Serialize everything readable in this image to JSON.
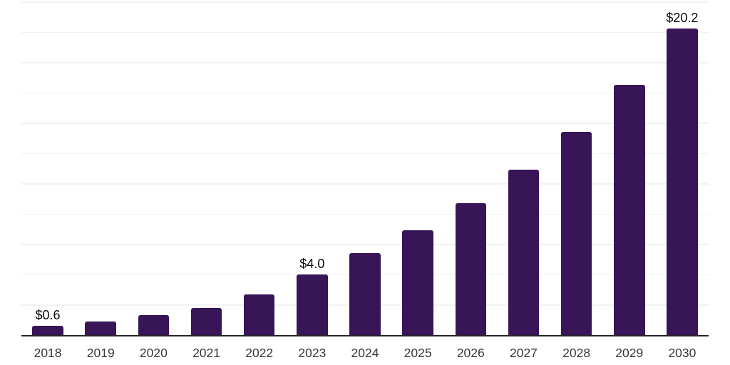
{
  "chart_data": {
    "type": "bar",
    "title": "",
    "xlabel": "",
    "ylabel": "",
    "categories": [
      "2018",
      "2019",
      "2020",
      "2021",
      "2022",
      "2023",
      "2024",
      "2025",
      "2026",
      "2027",
      "2028",
      "2029",
      "2030"
    ],
    "values": [
      0.6,
      0.9,
      1.3,
      1.8,
      2.7,
      4.0,
      5.4,
      6.9,
      8.7,
      10.9,
      13.4,
      16.5,
      20.2
    ],
    "value_labels": [
      {
        "index": 0,
        "text": "$0.6"
      },
      {
        "index": 5,
        "text": "$4.0"
      },
      {
        "index": 12,
        "text": "$20.2"
      }
    ],
    "ylim": [
      0,
      22
    ],
    "gridline_step": 2,
    "grid": true,
    "legend": false,
    "y_tick_labels_visible": false,
    "colors": {
      "bar": "#381556",
      "gridline": "#f1f1f1",
      "axis": "#242424",
      "value_label": "#0a0a0a",
      "year_label": "#383838",
      "background": "#ffffff"
    }
  }
}
